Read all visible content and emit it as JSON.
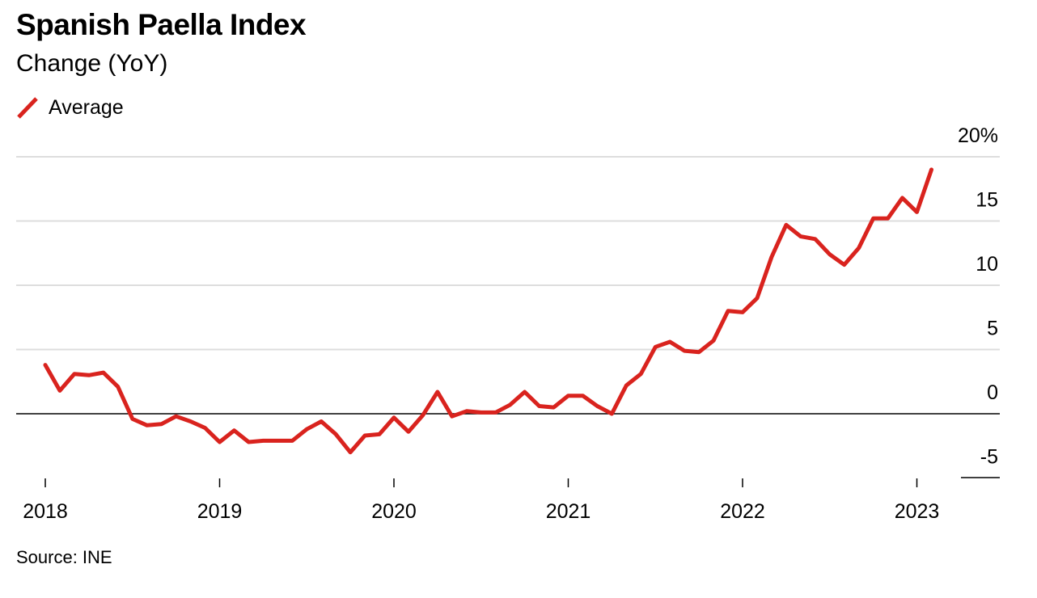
{
  "chart_data": {
    "type": "line",
    "title": "Spanish Paella Index",
    "subtitle": "Change (YoY)",
    "source": "Source: INE",
    "legend": {
      "placement": "top-left",
      "entries": [
        "Average"
      ]
    },
    "x_tick_labels": [
      "2018",
      "2019",
      "2020",
      "2021",
      "2022",
      "2023"
    ],
    "y_tick_labels": [
      "20%",
      "15",
      "10",
      "5",
      "0",
      "-5"
    ],
    "y_ticks": [
      20,
      15,
      10,
      5,
      0,
      -5
    ],
    "x_ticks": [
      "2018-01",
      "2019-01",
      "2020-01",
      "2021-01",
      "2022-01",
      "2023-01"
    ],
    "xlim": [
      "2017-11",
      "2023-05"
    ],
    "ylim": [
      -5,
      20
    ],
    "grid": true,
    "colors": {
      "series": "#d9231e",
      "grid": "#dddddd",
      "zero_line": "#000000"
    },
    "series": [
      {
        "name": "Average",
        "x": [
          "2018-01",
          "2018-02",
          "2018-03",
          "2018-04",
          "2018-05",
          "2018-06",
          "2018-07",
          "2018-08",
          "2018-09",
          "2018-10",
          "2018-11",
          "2018-12",
          "2019-01",
          "2019-02",
          "2019-03",
          "2019-04",
          "2019-05",
          "2019-06",
          "2019-07",
          "2019-08",
          "2019-09",
          "2019-10",
          "2019-11",
          "2019-12",
          "2020-01",
          "2020-02",
          "2020-03",
          "2020-04",
          "2020-05",
          "2020-06",
          "2020-07",
          "2020-08",
          "2020-09",
          "2020-10",
          "2020-11",
          "2020-12",
          "2021-01",
          "2021-02",
          "2021-03",
          "2021-04",
          "2021-05",
          "2021-06",
          "2021-07",
          "2021-08",
          "2021-09",
          "2021-10",
          "2021-11",
          "2021-12",
          "2022-01",
          "2022-02",
          "2022-03",
          "2022-04",
          "2022-05",
          "2022-06",
          "2022-07",
          "2022-08",
          "2022-09",
          "2022-10",
          "2022-11",
          "2022-12",
          "2023-01",
          "2023-02"
        ],
        "values": [
          3.8,
          1.8,
          3.1,
          3.0,
          3.2,
          2.1,
          -0.4,
          -0.9,
          -0.8,
          -0.2,
          -0.6,
          -1.1,
          -2.2,
          -1.3,
          -2.2,
          -2.1,
          -2.1,
          -2.1,
          -1.2,
          -0.6,
          -1.6,
          -3.0,
          -1.7,
          -1.6,
          -0.3,
          -1.4,
          -0.1,
          1.7,
          -0.2,
          0.2,
          0.1,
          0.1,
          0.7,
          1.7,
          0.6,
          0.5,
          1.4,
          1.4,
          0.6,
          0.0,
          2.2,
          3.1,
          5.2,
          5.6,
          4.9,
          4.8,
          5.7,
          8.0,
          7.9,
          9.0,
          12.2,
          14.7,
          13.8,
          13.6,
          12.4,
          11.6,
          12.9,
          15.2,
          15.2,
          16.8,
          15.7,
          19.0
        ]
      }
    ]
  }
}
